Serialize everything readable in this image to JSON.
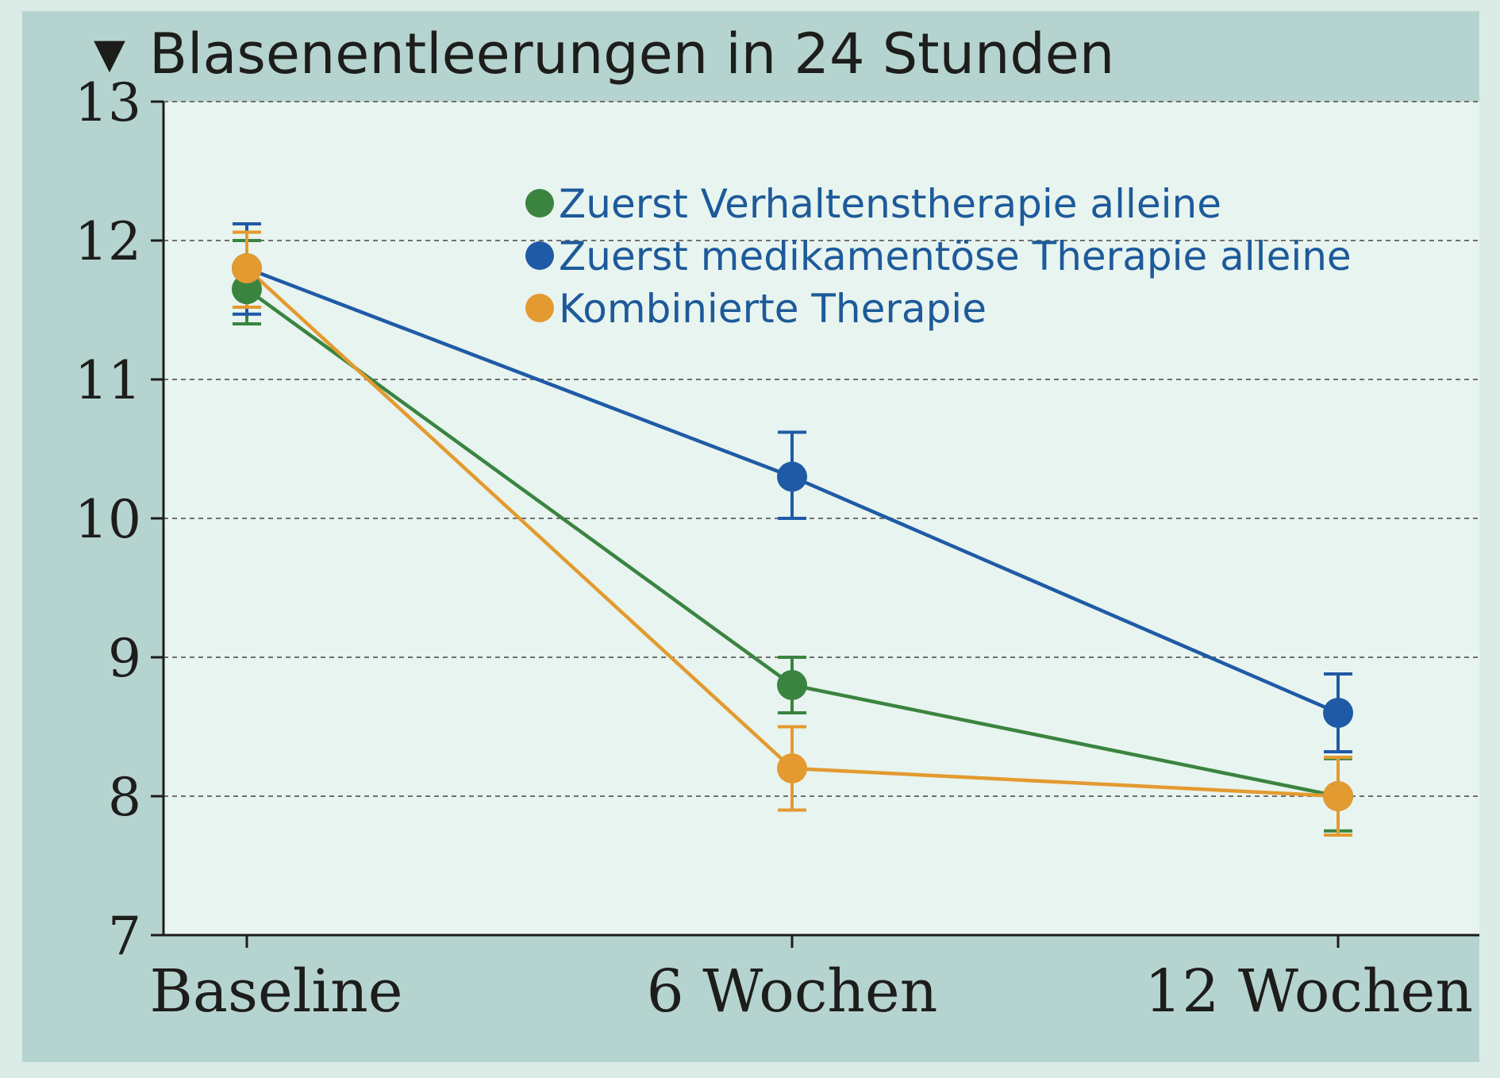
{
  "title": "Blasenentleerungen in 24 Stunden",
  "title_marker": "▼",
  "colors": {
    "background": "#dbece6",
    "frame": "#b6d4cf",
    "plot": "#e8f4ef",
    "axis": "#1d1d1b",
    "grid": "#6f6f6f",
    "legend_text": "#1d5a9a"
  },
  "chart_data": {
    "type": "line",
    "title": "Blasenentleerungen in 24 Stunden",
    "xlabel": "",
    "ylabel": "",
    "categories": [
      "Baseline",
      "6 Wochen",
      "12 Wochen"
    ],
    "ylim": [
      7,
      13
    ],
    "yticks": [
      7,
      8,
      9,
      10,
      11,
      12,
      13
    ],
    "grid": "horizontal dashed",
    "error_bars": true,
    "legend_position": "top-right",
    "series": [
      {
        "name": "Zuerst Verhaltenstherapie alleine",
        "color": "#3a8440",
        "values": [
          11.65,
          8.8,
          8.0
        ],
        "err_low": [
          11.4,
          8.6,
          7.75
        ],
        "err_high": [
          12.0,
          9.0,
          8.27
        ]
      },
      {
        "name": "Zuerst medikamentöse Therapie alleine",
        "color": "#1f5aa6",
        "values": [
          11.8,
          10.3,
          8.6
        ],
        "err_low": [
          11.47,
          10.0,
          8.32
        ],
        "err_high": [
          12.12,
          10.62,
          8.88
        ]
      },
      {
        "name": "Kombinierte Therapie",
        "color": "#e39a30",
        "values": [
          11.8,
          8.2,
          8.0
        ],
        "err_low": [
          11.52,
          7.9,
          7.72
        ],
        "err_high": [
          12.06,
          8.5,
          8.28
        ]
      }
    ]
  }
}
